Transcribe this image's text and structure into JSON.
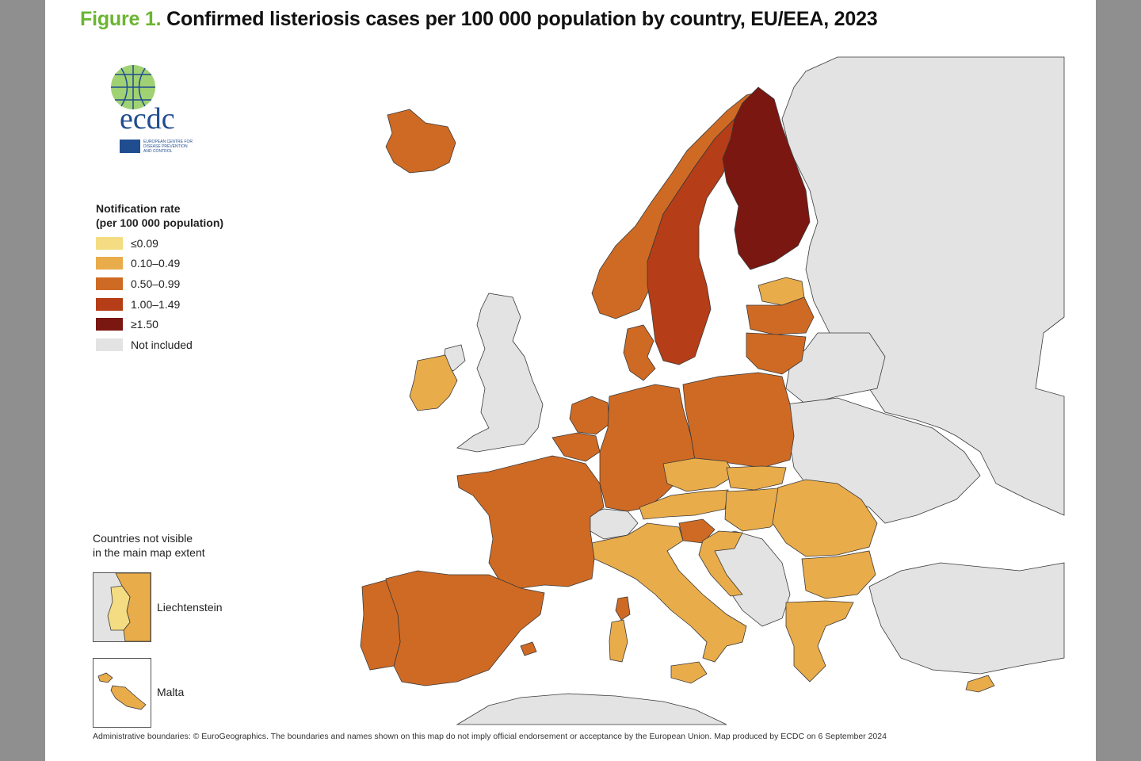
{
  "title": {
    "figure_label": "Figure 1.",
    "text": "Confirmed listeriosis cases per 100 000 population by country, EU/EEA, 2023"
  },
  "logo": {
    "wordmark": "ecdc",
    "subtitle_lines": [
      "EUROPEAN CENTRE FOR",
      "DISEASE PREVENTION",
      "AND CONTROL"
    ]
  },
  "legend": {
    "title_line1": "Notification rate",
    "title_line2": "(per 100 000 population)",
    "items": [
      {
        "label": "≤0.09",
        "color": "#f4dc82"
      },
      {
        "label": "0.10–0.49",
        "color": "#e9ac4a"
      },
      {
        "label": "0.50–0.99",
        "color": "#cf6a24"
      },
      {
        "label": "1.00–1.49",
        "color": "#b53d17"
      },
      {
        "label": "≥1.50",
        "color": "#7a1711"
      },
      {
        "label": "Not included",
        "color": "#e3e3e3"
      }
    ]
  },
  "not_visible": {
    "line1": "Countries not visible",
    "line2": "in the main map extent"
  },
  "insets": [
    {
      "name": "Liechtenstein",
      "label": "Liechtenstein"
    },
    {
      "name": "Malta",
      "label": "Malta"
    }
  ],
  "footer": "Administrative boundaries: © EuroGeographics. The boundaries and names shown on this map do not imply official endorsement or acceptance by the European Union. Map produced by ECDC on 6 September 2024",
  "colors": {
    "sea": "#ffffff",
    "not_included": "#e3e3e3",
    "border": "#3a3a3a",
    "title_accent": "#6bb531"
  }
}
